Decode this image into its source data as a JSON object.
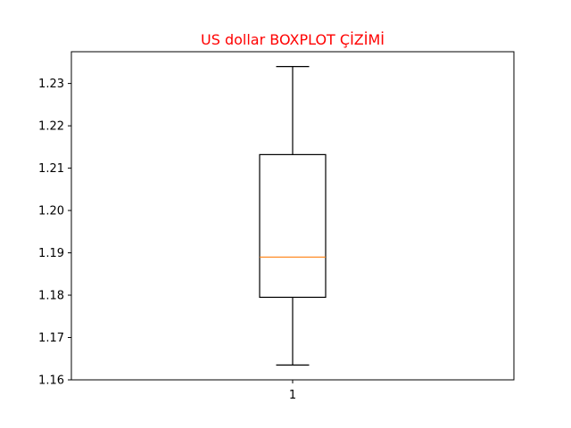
{
  "chart_data": {
    "type": "boxplot",
    "title": "US dollar BOXPLOT ÇİZİMİ",
    "title_color": "#ff0000",
    "xlabel": "",
    "ylabel": "",
    "categories": [
      "1"
    ],
    "boxes": [
      {
        "category": "1",
        "whisker_low": 1.1635,
        "q1": 1.1795,
        "median": 1.189,
        "q3": 1.2132,
        "whisker_high": 1.234
      }
    ],
    "ylim": [
      1.16,
      1.2375
    ],
    "yticks": [
      "1.16",
      "1.17",
      "1.18",
      "1.19",
      "1.20",
      "1.21",
      "1.22",
      "1.23"
    ],
    "ytick_values": [
      1.16,
      1.17,
      1.18,
      1.19,
      1.2,
      1.21,
      1.22,
      1.23
    ],
    "median_color": "#ff7f0e",
    "box_color": "#000000",
    "grid": false,
    "legend": "none"
  }
}
